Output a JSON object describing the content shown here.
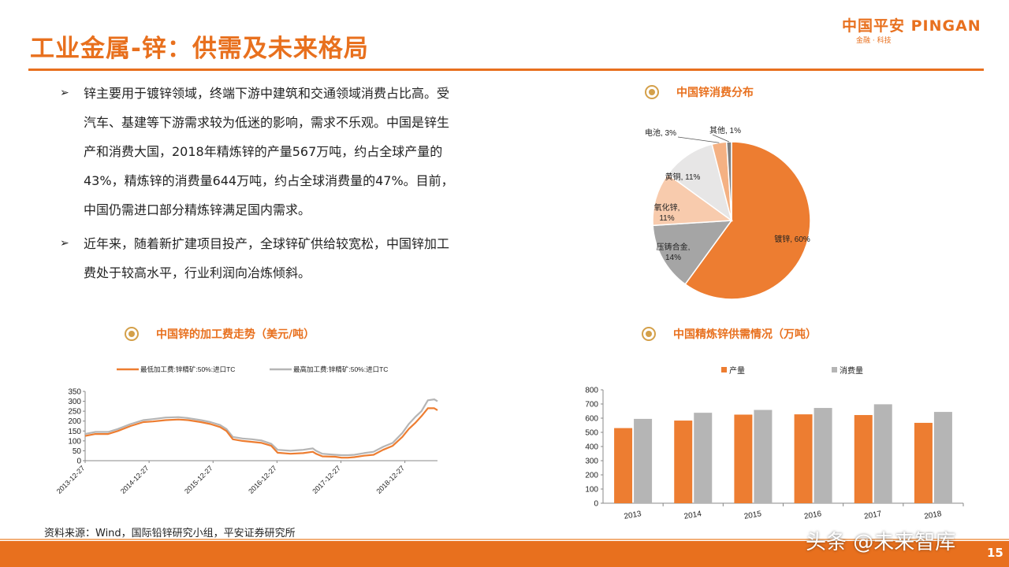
{
  "header": {
    "title": "工业金属-锌：供需及未来格局",
    "logo_main": "中国平安 PINGAN",
    "logo_sub": "金融 · 科技"
  },
  "bullets": [
    "锌主要用于镀锌领域，终端下游中建筑和交通领域消费占比高。受汽车、基建等下游需求较为低迷的影响，需求不乐观。中国是锌生产和消费大国，2018年精炼锌的产量567万吨，约占全球产量的43%，精炼锌的消费量644万吨，约占全球消费量的47%。目前，中国仍需进口部分精炼锌满足国内需求。",
    "近年来，随着新扩建项目投产，全球锌矿供给较宽松，中国锌加工费处于较高水平，行业利润向冶炼倾斜。"
  ],
  "bullet_mark": "➢",
  "sections": {
    "pie_title": "中国锌消费分布",
    "line_title": "中国锌的加工费走势（美元/吨）",
    "bar_title": "中国精炼锌供需情况（万吨）"
  },
  "source": "资料来源：Wind，国际铅锌研究小组，平安证券研究所",
  "watermark": "头条 @未来智库",
  "page_number": "15",
  "colors": {
    "accent": "#e8701e",
    "gray_series": "#b5b5b5"
  },
  "chart_data": [
    {
      "type": "pie",
      "title": "中国锌消费分布",
      "slices": [
        {
          "label": "镀锌, 60%",
          "value": 60,
          "color": "#ed7d31"
        },
        {
          "label": "压铸合金, 14%",
          "value": 14,
          "color": "#a5a5a5"
        },
        {
          "label": "氧化锌, 11%",
          "value": 11,
          "color": "#f8cbad"
        },
        {
          "label": "黄铜, 11%",
          "value": 11,
          "color": "#e7e6e6"
        },
        {
          "label": "电池, 3%",
          "value": 3,
          "color": "#f4b183"
        },
        {
          "label": "其他, 1%",
          "value": 1,
          "color": "#7f7f7f"
        }
      ]
    },
    {
      "type": "line",
      "title": "中国锌的加工费走势（美元/吨）",
      "ylim": [
        0,
        350
      ],
      "yticks": [
        0,
        50,
        100,
        150,
        200,
        250,
        300,
        350
      ],
      "xticks": [
        "2013-12-27",
        "2014-12-27",
        "2015-12-27",
        "2016-12-27",
        "2017-12-27",
        "2018-12-27"
      ],
      "x_range": [
        2013.99,
        2019.5
      ],
      "legend_position": "top",
      "series": [
        {
          "name": "最低加工费:锌精矿:50%:进口TC",
          "color": "#ed7d31",
          "points": [
            [
              2013.99,
              125
            ],
            [
              2014.15,
              135
            ],
            [
              2014.35,
              135
            ],
            [
              2014.5,
              150
            ],
            [
              2014.7,
              175
            ],
            [
              2014.9,
              195
            ],
            [
              2015.05,
              198
            ],
            [
              2015.25,
              205
            ],
            [
              2015.45,
              208
            ],
            [
              2015.6,
              205
            ],
            [
              2015.8,
              195
            ],
            [
              2015.95,
              185
            ],
            [
              2016.1,
              170
            ],
            [
              2016.2,
              150
            ],
            [
              2016.3,
              108
            ],
            [
              2016.45,
              100
            ],
            [
              2016.6,
              95
            ],
            [
              2016.75,
              90
            ],
            [
              2016.9,
              75
            ],
            [
              2017.0,
              40
            ],
            [
              2017.2,
              35
            ],
            [
              2017.4,
              38
            ],
            [
              2017.55,
              45
            ],
            [
              2017.6,
              35
            ],
            [
              2017.7,
              22
            ],
            [
              2017.9,
              20
            ],
            [
              2018.0,
              15
            ],
            [
              2018.1,
              15
            ],
            [
              2018.2,
              18
            ],
            [
              2018.35,
              25
            ],
            [
              2018.5,
              30
            ],
            [
              2018.65,
              55
            ],
            [
              2018.8,
              75
            ],
            [
              2018.95,
              120
            ],
            [
              2019.05,
              160
            ],
            [
              2019.15,
              190
            ],
            [
              2019.25,
              225
            ],
            [
              2019.35,
              265
            ],
            [
              2019.45,
              265
            ],
            [
              2019.5,
              255
            ]
          ]
        },
        {
          "name": "最高加工费:锌精矿:50%:进口TC",
          "color": "#b5b5b5",
          "points": [
            [
              2013.99,
              135
            ],
            [
              2014.15,
              145
            ],
            [
              2014.35,
              145
            ],
            [
              2014.5,
              160
            ],
            [
              2014.7,
              185
            ],
            [
              2014.9,
              205
            ],
            [
              2015.05,
              210
            ],
            [
              2015.25,
              218
            ],
            [
              2015.45,
              220
            ],
            [
              2015.6,
              215
            ],
            [
              2015.8,
              205
            ],
            [
              2015.95,
              195
            ],
            [
              2016.1,
              180
            ],
            [
              2016.2,
              160
            ],
            [
              2016.3,
              120
            ],
            [
              2016.45,
              112
            ],
            [
              2016.6,
              108
            ],
            [
              2016.75,
              102
            ],
            [
              2016.9,
              85
            ],
            [
              2017.0,
              55
            ],
            [
              2017.2,
              50
            ],
            [
              2017.4,
              55
            ],
            [
              2017.55,
              62
            ],
            [
              2017.6,
              50
            ],
            [
              2017.7,
              35
            ],
            [
              2017.9,
              30
            ],
            [
              2018.0,
              28
            ],
            [
              2018.1,
              28
            ],
            [
              2018.2,
              30
            ],
            [
              2018.35,
              38
            ],
            [
              2018.5,
              45
            ],
            [
              2018.65,
              70
            ],
            [
              2018.8,
              90
            ],
            [
              2018.95,
              140
            ],
            [
              2019.05,
              185
            ],
            [
              2019.15,
              220
            ],
            [
              2019.25,
              250
            ],
            [
              2019.35,
              305
            ],
            [
              2019.45,
              310
            ],
            [
              2019.5,
              300
            ]
          ]
        }
      ]
    },
    {
      "type": "bar",
      "title": "中国精炼锌供需情况（万吨）",
      "categories": [
        "2013",
        "2014",
        "2015",
        "2016",
        "2017",
        "2018"
      ],
      "ylim": [
        0,
        800
      ],
      "yticks": [
        0,
        100,
        200,
        300,
        400,
        500,
        600,
        700,
        800
      ],
      "legend_position": "top",
      "series": [
        {
          "name": "产量",
          "color": "#ed7d31",
          "values": [
            530,
            583,
            625,
            627,
            622,
            567
          ]
        },
        {
          "name": "消费量",
          "color": "#b5b5b5",
          "values": [
            595,
            638,
            658,
            672,
            698,
            644
          ]
        }
      ]
    }
  ]
}
